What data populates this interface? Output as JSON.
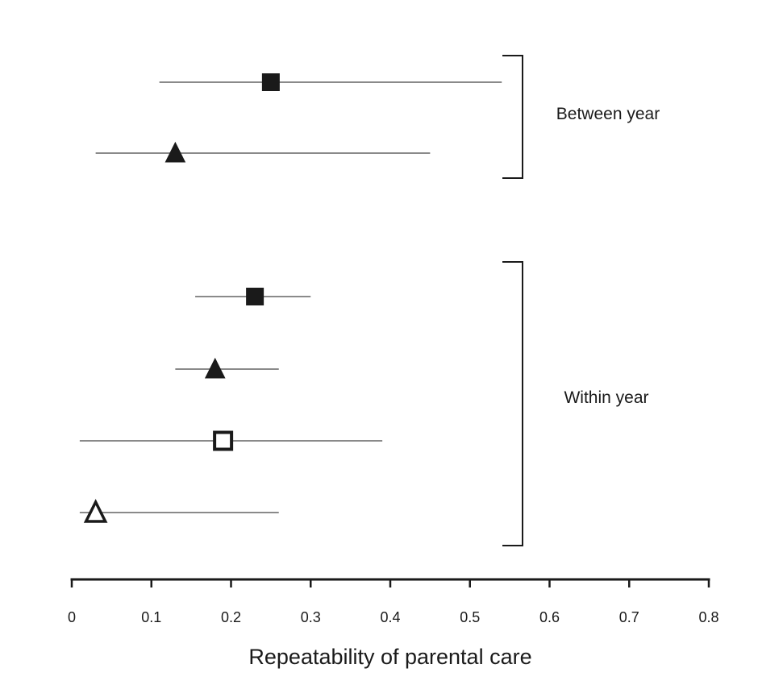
{
  "chart_data": {
    "type": "scatter",
    "subtype": "forest-plot",
    "title": "",
    "xlabel": "Repeatability of parental care",
    "ylabel": "",
    "xlim": [
      0,
      0.8
    ],
    "x_ticks": [
      0,
      0.1,
      0.2,
      0.3,
      0.4,
      0.5,
      0.6,
      0.7,
      0.8
    ],
    "x_tick_labels": [
      "0",
      "0.1",
      "0.2",
      "0.3",
      "0.4",
      "0.5",
      "0.6",
      "0.7",
      "0.8"
    ],
    "grid": false,
    "legend": "none",
    "line_color": "#8a8a8a",
    "marker_color": "#1a1a1a",
    "groups": [
      {
        "label": "Between year",
        "rows": [
          0,
          1
        ]
      },
      {
        "label": "Within year",
        "rows": [
          2,
          3,
          4,
          5
        ]
      }
    ],
    "points": [
      {
        "marker": "square",
        "filled": true,
        "estimate": 0.25,
        "lower": 0.11,
        "upper": 0.54
      },
      {
        "marker": "triangle",
        "filled": true,
        "estimate": 0.13,
        "lower": 0.03,
        "upper": 0.45
      },
      {
        "marker": "square",
        "filled": true,
        "estimate": 0.23,
        "lower": 0.155,
        "upper": 0.3
      },
      {
        "marker": "triangle",
        "filled": true,
        "estimate": 0.18,
        "lower": 0.13,
        "upper": 0.26
      },
      {
        "marker": "square",
        "filled": false,
        "estimate": 0.19,
        "lower": 0.01,
        "upper": 0.39
      },
      {
        "marker": "triangle",
        "filled": false,
        "estimate": 0.03,
        "lower": 0.01,
        "upper": 0.26
      }
    ]
  }
}
